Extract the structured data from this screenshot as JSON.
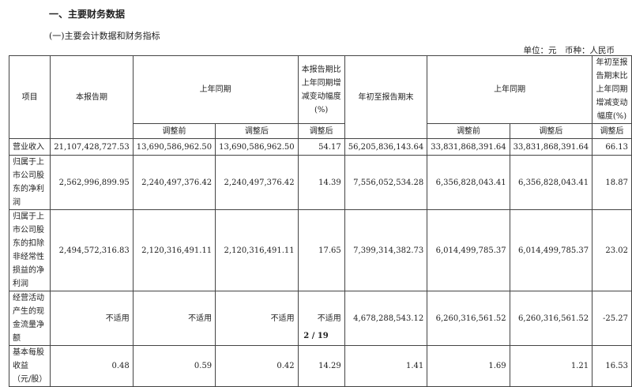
{
  "section_title": "一、主要财务数据",
  "subsection_title": "(一)主要会计数据和财务指标",
  "unit_line": "单位：元　币种：人民币",
  "header": {
    "item": "项目",
    "current": "本报告期",
    "prior_same": "上年同期",
    "change": "本报告期比上年同期增减变动幅度(%)",
    "ytd": "年初至报告期末",
    "prior_ytd": "上年同期",
    "ytd_change": "年初至报告期末比上年同期增减变动幅度(%)",
    "before": "调整前",
    "after": "调整后",
    "after2": "调整后",
    "before2": "调整前",
    "after3": "调整后",
    "after4": "调整后"
  },
  "rows": [
    {
      "item": "营业收入",
      "v": [
        "21,107,428,727.53",
        "13,690,586,962.50",
        "13,690,586,962.50",
        "54.17",
        "56,205,836,143.64",
        "33,831,868,391.64",
        "33,831,868,391.64",
        "66.13"
      ]
    },
    {
      "item": "归属于上市公司股东的净利润",
      "v": [
        "2,562,996,899.95",
        "2,240,497,376.42",
        "2,240,497,376.42",
        "14.39",
        "7,556,052,534.28",
        "6,356,828,043.41",
        "6,356,828,043.41",
        "18.87"
      ]
    },
    {
      "item": "归属于上市公司股东的扣除非经常性损益的净利润",
      "v": [
        "2,494,572,316.83",
        "2,120,316,491.11",
        "2,120,316,491.11",
        "17.65",
        "7,399,314,382.73",
        "6,014,499,785.37",
        "6,014,499,785.37",
        "23.02"
      ]
    },
    {
      "item": "经营活动产生的现金流量净额",
      "v": [
        "不适用",
        "不适用",
        "不适用",
        "不适用",
        "4,678,288,543.12",
        "6,260,316,561.52",
        "6,260,316,561.52",
        "-25.27"
      ]
    },
    {
      "item": "基本每股收益（元/股）",
      "v": [
        "0.48",
        "0.59",
        "0.42",
        "14.29",
        "1.41",
        "1.69",
        "1.21",
        "16.53"
      ]
    }
  ],
  "page": "2 / 19"
}
